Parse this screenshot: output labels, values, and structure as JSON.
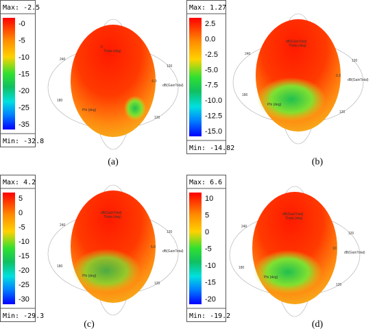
{
  "panels": [
    {
      "label": "(a)",
      "max": "Max: -2.5",
      "min": "Min: -32.8",
      "ticks": [
        "-0",
        "-5",
        "-10",
        "-15",
        "-20",
        "-25",
        "-35"
      ],
      "axes": [
        "0",
        "Theta (deg)",
        "240",
        "120",
        "180",
        "120",
        "Phi (deg)",
        "dB(GainTotal)",
        "-0.0"
      ]
    },
    {
      "label": "(b)",
      "max": "Max: 1.27",
      "min": "Min: -14.82",
      "ticks": [
        "2.5",
        "0.0",
        "-2.5",
        "-5.0",
        "-7.5",
        "-10.0",
        "-12.5",
        "-15.0"
      ],
      "axes": [
        "dB(GainTotal)",
        "Theta (deg)",
        "240",
        "120",
        "180",
        "120",
        "Phi (deg)",
        "dB(GainTotal)",
        "0.3"
      ]
    },
    {
      "label": "(c)",
      "max": "Max: 4.2",
      "min": "Min: -29.3",
      "ticks": [
        "5",
        "0",
        "-5",
        "-10",
        "-15",
        "-20",
        "-25",
        "-30"
      ],
      "axes": [
        "dB(GainTotal)",
        "Theta (deg)",
        "240",
        "120",
        "180",
        "120",
        "Phi (deg)",
        "dB(GainTotal)",
        "5.0"
      ]
    },
    {
      "label": "(d)",
      "max": "Max: 6.6",
      "min": "Min: -19.2",
      "ticks": [
        "10",
        "5",
        "0",
        "-5",
        "-10",
        "-15",
        "-20"
      ],
      "axes": [
        "dB(GainTotal)",
        "Theta (deg)",
        "240",
        "120",
        "180",
        "120",
        "Phi (deg)",
        "dB(GainTotal)",
        "10"
      ]
    }
  ]
}
